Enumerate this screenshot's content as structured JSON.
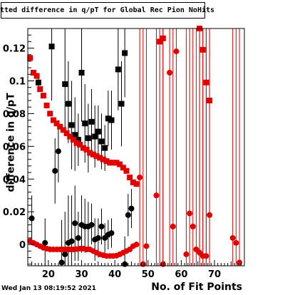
{
  "title": "Fitted difference in q/pT for Global Rec Pion NoHits",
  "footer": {
    "timestamp": "Wed Jan 13 08:19:52 2021"
  },
  "chart_data": {
    "type": "scatter",
    "xlabel": "No. of Fit Points",
    "ylabel": "difference in q/pT",
    "xlim": [
      13.8,
      79
    ],
    "ylim": [
      -0.013,
      0.132
    ],
    "x_ticks": [
      20,
      30,
      40,
      50,
      60,
      70
    ],
    "y_ticks": [
      0,
      0.02,
      0.04,
      0.06,
      0.08,
      0.1,
      0.12
    ],
    "x_tick_labels": [
      "20",
      "30",
      "40",
      "50",
      "60",
      "70"
    ],
    "y_tick_labels": [
      "0",
      "0.02",
      "0.04",
      "0.06",
      "0.08",
      "0.1",
      "0.12"
    ],
    "grid": false,
    "legend": "none",
    "series": [
      {
        "marker": "square",
        "color": "#000000",
        "points": [
          {
            "x": 17,
            "y": 0.099,
            "lo": 0.093,
            "hi": 0.104
          },
          {
            "x": 21,
            "y": 0.121,
            "lo": 0.088,
            "hi": 0.132
          },
          {
            "x": 25,
            "y": 0.098,
            "lo": 0.07,
            "hi": 0.132
          },
          {
            "x": 26,
            "y": 0.086,
            "lo": 0.062,
            "hi": 0.112
          },
          {
            "x": 27,
            "y": 0.073,
            "lo": 0.046,
            "hi": 0.1
          },
          {
            "x": 28,
            "y": 0.067,
            "lo": 0.045,
            "hi": 0.09
          },
          {
            "x": 29,
            "y": 0.064,
            "lo": 0.048,
            "hi": 0.08
          },
          {
            "x": 30,
            "y": 0.105,
            "lo": 0.075,
            "hi": 0.132
          },
          {
            "x": 31,
            "y": 0.074,
            "lo": 0.05,
            "hi": 0.098
          },
          {
            "x": 32,
            "y": 0.065,
            "lo": 0.044,
            "hi": 0.086
          },
          {
            "x": 33,
            "y": 0.075,
            "lo": 0.055,
            "hi": 0.095
          },
          {
            "x": 34,
            "y": 0.066,
            "lo": 0.047,
            "hi": 0.085
          },
          {
            "x": 35,
            "y": 0.069,
            "lo": 0.053,
            "hi": 0.085
          },
          {
            "x": 36,
            "y": 0.063,
            "lo": 0.046,
            "hi": 0.08
          },
          {
            "x": 37,
            "y": 0.059,
            "lo": 0.045,
            "hi": 0.073
          },
          {
            "x": 38,
            "y": 0.077,
            "lo": 0.06,
            "hi": 0.094
          },
          {
            "x": 39,
            "y": 0.076,
            "lo": 0.058,
            "hi": 0.094
          },
          {
            "x": 41,
            "y": 0.107,
            "lo": 0.082,
            "hi": 0.132
          },
          {
            "x": 42,
            "y": 0.086,
            "lo": 0.06,
            "hi": 0.112
          },
          {
            "x": 43,
            "y": 0.117,
            "lo": 0.09,
            "hi": 0.132
          }
        ]
      },
      {
        "marker": "square",
        "color": "#e00000",
        "points": [
          {
            "x": 14.5,
            "y": 0.114,
            "lo": 0.114,
            "hi": 0.114
          },
          {
            "x": 15.5,
            "y": 0.105,
            "lo": 0.105,
            "hi": 0.105
          },
          {
            "x": 16.5,
            "y": 0.103,
            "lo": 0.103,
            "hi": 0.103
          },
          {
            "x": 17.5,
            "y": 0.095,
            "lo": 0.095,
            "hi": 0.095
          },
          {
            "x": 18.5,
            "y": 0.091,
            "lo": 0.091,
            "hi": 0.091
          },
          {
            "x": 19.5,
            "y": 0.085,
            "lo": 0.085,
            "hi": 0.085
          },
          {
            "x": 20.5,
            "y": 0.08,
            "lo": 0.08,
            "hi": 0.08
          },
          {
            "x": 21.5,
            "y": 0.076,
            "lo": 0.076,
            "hi": 0.076
          },
          {
            "x": 22.5,
            "y": 0.074,
            "lo": 0.074,
            "hi": 0.074
          },
          {
            "x": 23.5,
            "y": 0.072,
            "lo": 0.072,
            "hi": 0.072
          },
          {
            "x": 24.5,
            "y": 0.07,
            "lo": 0.07,
            "hi": 0.07
          },
          {
            "x": 25.5,
            "y": 0.068,
            "lo": 0.068,
            "hi": 0.068
          },
          {
            "x": 26.5,
            "y": 0.066,
            "lo": 0.066,
            "hi": 0.066
          },
          {
            "x": 27.5,
            "y": 0.064,
            "lo": 0.064,
            "hi": 0.064
          },
          {
            "x": 28.5,
            "y": 0.062,
            "lo": 0.062,
            "hi": 0.062
          },
          {
            "x": 29.5,
            "y": 0.061,
            "lo": 0.061,
            "hi": 0.061
          },
          {
            "x": 30.5,
            "y": 0.059,
            "lo": 0.059,
            "hi": 0.059
          },
          {
            "x": 31.5,
            "y": 0.058,
            "lo": 0.058,
            "hi": 0.058
          },
          {
            "x": 32.5,
            "y": 0.056,
            "lo": 0.056,
            "hi": 0.056
          },
          {
            "x": 33.5,
            "y": 0.055,
            "lo": 0.055,
            "hi": 0.055
          },
          {
            "x": 34.5,
            "y": 0.054,
            "lo": 0.054,
            "hi": 0.054
          },
          {
            "x": 35.5,
            "y": 0.053,
            "lo": 0.053,
            "hi": 0.053
          },
          {
            "x": 36.5,
            "y": 0.052,
            "lo": 0.052,
            "hi": 0.052
          },
          {
            "x": 37.5,
            "y": 0.051,
            "lo": 0.051,
            "hi": 0.051
          },
          {
            "x": 38.5,
            "y": 0.05,
            "lo": 0.05,
            "hi": 0.05
          },
          {
            "x": 39.5,
            "y": 0.05,
            "lo": 0.05,
            "hi": 0.05
          },
          {
            "x": 40.5,
            "y": 0.05,
            "lo": 0.05,
            "hi": 0.05
          },
          {
            "x": 41.5,
            "y": 0.049,
            "lo": 0.049,
            "hi": 0.049
          },
          {
            "x": 42.5,
            "y": 0.047,
            "lo": 0.047,
            "hi": 0.047
          },
          {
            "x": 43.5,
            "y": 0.045,
            "lo": 0.045,
            "hi": 0.045
          },
          {
            "x": 44.5,
            "y": 0.041,
            "lo": 0.041,
            "hi": 0.041
          },
          {
            "x": 45.5,
            "y": 0.038,
            "lo": 0.038,
            "hi": 0.038
          },
          {
            "x": 46.5,
            "y": 0.037,
            "lo": 0.037,
            "hi": 0.037
          },
          {
            "x": 53.5,
            "y": 0.124,
            "lo": -0.013,
            "hi": 0.132
          },
          {
            "x": 54.5,
            "y": 0.126,
            "lo": -0.013,
            "hi": 0.132
          },
          {
            "x": 65.5,
            "y": 0.132,
            "lo": -0.013,
            "hi": 0.132
          },
          {
            "x": 66.5,
            "y": 0.119,
            "lo": -0.013,
            "hi": 0.132
          },
          {
            "x": 67.5,
            "y": 0.099,
            "lo": -0.013,
            "hi": 0.132
          },
          {
            "x": 68.5,
            "y": 0.088,
            "lo": -0.013,
            "hi": 0.132
          }
        ]
      },
      {
        "marker": "circle",
        "color": "#000000",
        "points": [
          {
            "x": 15,
            "y": 0.016,
            "lo": 0.0,
            "hi": 0.03
          },
          {
            "x": 19,
            "y": 0.001,
            "lo": -0.013,
            "hi": 0.016
          },
          {
            "x": 22,
            "y": 0.045,
            "lo": 0.025,
            "hi": 0.065
          },
          {
            "x": 23,
            "y": 0.057,
            "lo": 0.038,
            "hi": 0.076
          },
          {
            "x": 24,
            "y": -0.011,
            "lo": -0.013,
            "hi": 0.015
          },
          {
            "x": 25,
            "y": -0.006,
            "lo": -0.013,
            "hi": 0.02
          },
          {
            "x": 26,
            "y": 0.001,
            "lo": -0.013,
            "hi": 0.03
          },
          {
            "x": 27,
            "y": 0.002,
            "lo": -0.013,
            "hi": 0.03
          },
          {
            "x": 28,
            "y": 0.013,
            "lo": -0.01,
            "hi": 0.036
          },
          {
            "x": 29,
            "y": 0.004,
            "lo": -0.01,
            "hi": 0.02
          },
          {
            "x": 30,
            "y": 0.012,
            "lo": -0.005,
            "hi": 0.03
          },
          {
            "x": 31,
            "y": 0.011,
            "lo": -0.005,
            "hi": 0.028
          },
          {
            "x": 32,
            "y": 0.011,
            "lo": -0.003,
            "hi": 0.026
          },
          {
            "x": 33,
            "y": 0.012,
            "lo": 0.0,
            "hi": 0.025
          },
          {
            "x": 34,
            "y": 0.003,
            "lo": -0.01,
            "hi": 0.016
          },
          {
            "x": 35,
            "y": 0.004,
            "lo": -0.008,
            "hi": 0.016
          },
          {
            "x": 36,
            "y": 0.011,
            "lo": 0.0,
            "hi": 0.022
          },
          {
            "x": 37,
            "y": 0.004,
            "lo": -0.005,
            "hi": 0.013
          },
          {
            "x": 38,
            "y": 0.006,
            "lo": -0.003,
            "hi": 0.015
          },
          {
            "x": 39,
            "y": 0.007,
            "lo": -0.002,
            "hi": 0.016
          },
          {
            "x": 43,
            "y": -0.012,
            "lo": -0.013,
            "hi": 0.005
          },
          {
            "x": 44,
            "y": 0.018,
            "lo": 0.005,
            "hi": 0.031
          },
          {
            "x": 45,
            "y": 0.022,
            "lo": 0.01,
            "hi": 0.034
          }
        ]
      },
      {
        "marker": "circle",
        "color": "#e00000",
        "points": [
          {
            "x": 14.5,
            "y": 0.002,
            "lo": 0.002,
            "hi": 0.002
          },
          {
            "x": 15.5,
            "y": 0.001,
            "lo": 0.001,
            "hi": 0.001
          },
          {
            "x": 16.5,
            "y": 0.0,
            "lo": 0.0,
            "hi": 0.0
          },
          {
            "x": 17.5,
            "y": -0.001,
            "lo": -0.001,
            "hi": -0.001
          },
          {
            "x": 18.5,
            "y": -0.002,
            "lo": -0.002,
            "hi": -0.002
          },
          {
            "x": 19.5,
            "y": -0.0025,
            "lo": -0.0025,
            "hi": -0.0025
          },
          {
            "x": 20.5,
            "y": -0.003,
            "lo": -0.003,
            "hi": -0.003
          },
          {
            "x": 21.5,
            "y": -0.003,
            "lo": -0.003,
            "hi": -0.003
          },
          {
            "x": 22.5,
            "y": -0.003,
            "lo": -0.003,
            "hi": -0.003
          },
          {
            "x": 23.5,
            "y": -0.003,
            "lo": -0.003,
            "hi": -0.003
          },
          {
            "x": 24.5,
            "y": -0.003,
            "lo": -0.003,
            "hi": -0.003
          },
          {
            "x": 25.5,
            "y": -0.003,
            "lo": -0.003,
            "hi": -0.003
          },
          {
            "x": 26.5,
            "y": -0.003,
            "lo": -0.003,
            "hi": -0.003
          },
          {
            "x": 27.5,
            "y": -0.003,
            "lo": -0.003,
            "hi": -0.003
          },
          {
            "x": 28.5,
            "y": -0.0028,
            "lo": -0.0028,
            "hi": -0.0028
          },
          {
            "x": 29.5,
            "y": -0.0025,
            "lo": -0.0025,
            "hi": -0.0025
          },
          {
            "x": 30.5,
            "y": -0.0025,
            "lo": -0.0025,
            "hi": -0.0025
          },
          {
            "x": 31.5,
            "y": -0.003,
            "lo": -0.003,
            "hi": -0.003
          },
          {
            "x": 32.5,
            "y": -0.003,
            "lo": -0.003,
            "hi": -0.003
          },
          {
            "x": 33.5,
            "y": -0.004,
            "lo": -0.004,
            "hi": -0.004
          },
          {
            "x": 34.5,
            "y": -0.005,
            "lo": -0.005,
            "hi": -0.005
          },
          {
            "x": 35.5,
            "y": -0.006,
            "lo": -0.006,
            "hi": -0.006
          },
          {
            "x": 36.5,
            "y": -0.0065,
            "lo": -0.0065,
            "hi": -0.0065
          },
          {
            "x": 37.5,
            "y": -0.007,
            "lo": -0.007,
            "hi": -0.007
          },
          {
            "x": 38.5,
            "y": -0.007,
            "lo": -0.007,
            "hi": -0.007
          },
          {
            "x": 39.5,
            "y": -0.007,
            "lo": -0.007,
            "hi": -0.007
          },
          {
            "x": 40.5,
            "y": -0.0068,
            "lo": -0.0068,
            "hi": -0.0068
          },
          {
            "x": 41.5,
            "y": -0.006,
            "lo": -0.006,
            "hi": -0.006
          },
          {
            "x": 42.5,
            "y": -0.005,
            "lo": -0.005,
            "hi": -0.005
          },
          {
            "x": 43.5,
            "y": -0.004,
            "lo": -0.004,
            "hi": -0.004
          },
          {
            "x": 44.5,
            "y": -0.003,
            "lo": -0.003,
            "hi": -0.003
          },
          {
            "x": 45.5,
            "y": -0.001,
            "lo": -0.001,
            "hi": -0.001
          },
          {
            "x": 46.5,
            "y": 0.0,
            "lo": 0.0,
            "hi": 0.0
          },
          {
            "x": 47.5,
            "y": 0.041,
            "lo": -0.013,
            "hi": 0.132
          },
          {
            "x": 48.5,
            "y": -0.012,
            "lo": -0.013,
            "hi": 0.132
          },
          {
            "x": 49.5,
            "y": -0.001,
            "lo": -0.013,
            "hi": 0.132
          },
          {
            "x": 52.5,
            "y": 0.03,
            "lo": -0.013,
            "hi": 0.132
          },
          {
            "x": 54.5,
            "y": -0.012,
            "lo": -0.013,
            "hi": 0.132
          },
          {
            "x": 56.5,
            "y": 0.105,
            "lo": -0.013,
            "hi": 0.132
          },
          {
            "x": 57.5,
            "y": 0.011,
            "lo": -0.013,
            "hi": 0.132
          },
          {
            "x": 58.5,
            "y": 0.118,
            "lo": -0.013,
            "hi": 0.132
          },
          {
            "x": 61.5,
            "y": -0.006,
            "lo": -0.013,
            "hi": 0.132
          },
          {
            "x": 62.5,
            "y": 0.019,
            "lo": -0.013,
            "hi": 0.132
          },
          {
            "x": 63.5,
            "y": 0.011,
            "lo": -0.013,
            "hi": 0.132
          },
          {
            "x": 64.5,
            "y": -0.003,
            "lo": -0.013,
            "hi": 0.132
          },
          {
            "x": 65.5,
            "y": -0.005,
            "lo": -0.013,
            "hi": 0.132
          },
          {
            "x": 66.5,
            "y": -0.007,
            "lo": -0.013,
            "hi": 0.132
          },
          {
            "x": 67.5,
            "y": -0.007,
            "lo": -0.013,
            "hi": 0.132
          },
          {
            "x": 68.5,
            "y": 0.018,
            "lo": -0.013,
            "hi": 0.132
          },
          {
            "x": 75.5,
            "y": 0.004,
            "lo": -0.013,
            "hi": 0.132
          },
          {
            "x": 76.5,
            "y": 0.001,
            "lo": -0.013,
            "hi": 0.132
          },
          {
            "x": 77.5,
            "y": -0.011,
            "lo": -0.013,
            "hi": 0.132
          }
        ]
      }
    ]
  }
}
